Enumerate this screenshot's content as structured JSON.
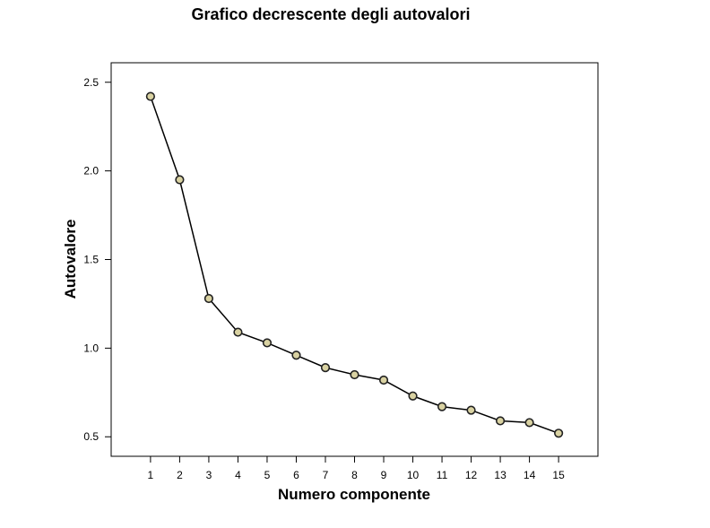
{
  "chart_data": {
    "type": "line",
    "title": "Grafico decrescente degli autovalori",
    "xlabel": "Numero componente",
    "ylabel": "Autovalore",
    "x": [
      1,
      2,
      3,
      4,
      5,
      6,
      7,
      8,
      9,
      10,
      11,
      12,
      13,
      14,
      15
    ],
    "x_tick_labels": [
      "1",
      "2",
      "3",
      "4",
      "5",
      "6",
      "7",
      "8",
      "9",
      "10",
      "11",
      "12",
      "13",
      "14",
      "15"
    ],
    "values": [
      2.42,
      1.95,
      1.28,
      1.09,
      1.03,
      0.96,
      0.89,
      0.85,
      0.82,
      0.73,
      0.67,
      0.65,
      0.59,
      0.58,
      0.52
    ],
    "y_ticks": [
      0.5,
      1.0,
      1.5,
      2.0,
      2.5
    ],
    "y_tick_labels": [
      "0.5",
      "1.0",
      "1.5",
      "2.0",
      "2.5"
    ],
    "xlim": [
      -0.35,
      16.35
    ],
    "ylim": [
      0.39,
      2.61
    ],
    "grid": false,
    "legend": "none",
    "colors": {
      "line": "#000000",
      "marker_fill": "#d9d2a2",
      "marker_stroke": "#222222",
      "frame": "#000000"
    }
  }
}
